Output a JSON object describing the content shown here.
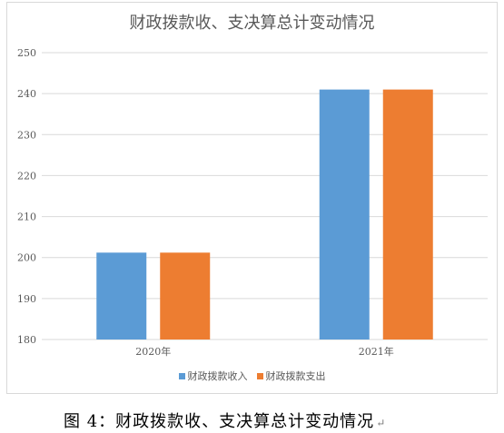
{
  "chart_data": {
    "type": "bar",
    "title": "财政拨款收、支决算总计变动情况",
    "categories": [
      "2020年",
      "2021年"
    ],
    "series": [
      {
        "name": "财政拨款收入",
        "values": [
          201.2,
          241.0
        ],
        "color": "#5b9bd5"
      },
      {
        "name": "财政拨款支出",
        "values": [
          201.2,
          241.0
        ],
        "color": "#ed7d31"
      }
    ],
    "ylim": [
      180,
      250
    ],
    "yticks": [
      180,
      190,
      200,
      210,
      220,
      230,
      240,
      250
    ],
    "grid": true,
    "legend_position": "bottom",
    "xlabel": "",
    "ylabel": ""
  },
  "caption": {
    "text": "图 4：财政拨款收、支决算总计变动情况",
    "mark": "↵"
  }
}
